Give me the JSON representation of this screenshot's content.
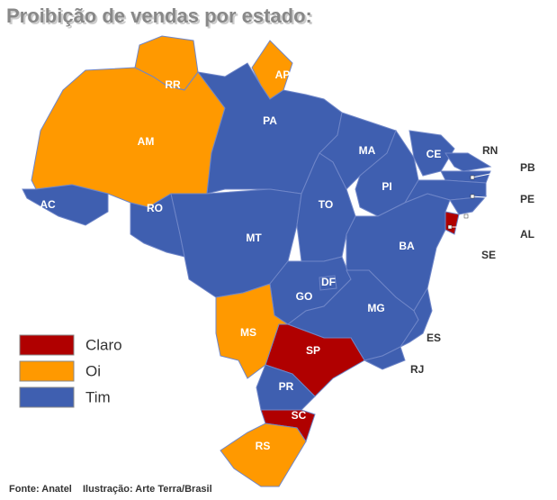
{
  "title": "Proibição de vendas por estado:",
  "legend": [
    {
      "label": "Claro",
      "color": "#b00000"
    },
    {
      "label": "Oi",
      "color": "#ff9900"
    },
    {
      "label": "Tim",
      "color": "#3f5fb0"
    }
  ],
  "states": [
    {
      "label": "RR",
      "operator": "Oi"
    },
    {
      "label": "AP",
      "operator": "Oi"
    },
    {
      "label": "AM",
      "operator": "Oi"
    },
    {
      "label": "AC",
      "operator": "Tim"
    },
    {
      "label": "RO",
      "operator": "Tim"
    },
    {
      "label": "PA",
      "operator": "Tim"
    },
    {
      "label": "MT",
      "operator": "Tim"
    },
    {
      "label": "MA",
      "operator": "Tim"
    },
    {
      "label": "PI",
      "operator": "Tim"
    },
    {
      "label": "CE",
      "operator": "Tim"
    },
    {
      "label": "RN",
      "operator": "Tim"
    },
    {
      "label": "PB",
      "operator": "Tim"
    },
    {
      "label": "PE",
      "operator": "Tim"
    },
    {
      "label": "AL",
      "operator": "Tim"
    },
    {
      "label": "SE",
      "operator": "Claro"
    },
    {
      "label": "BA",
      "operator": "Tim"
    },
    {
      "label": "TO",
      "operator": "Tim"
    },
    {
      "label": "GO",
      "operator": "Tim"
    },
    {
      "label": "DF",
      "operator": "Tim"
    },
    {
      "label": "MG",
      "operator": "Tim"
    },
    {
      "label": "ES",
      "operator": "Tim"
    },
    {
      "label": "RJ",
      "operator": "Tim"
    },
    {
      "label": "SP",
      "operator": "Claro"
    },
    {
      "label": "MS",
      "operator": "Oi"
    },
    {
      "label": "PR",
      "operator": "Tim"
    },
    {
      "label": "SC",
      "operator": "Claro"
    },
    {
      "label": "RS",
      "operator": "Oi"
    }
  ],
  "footer": {
    "source": "Fonte: Anatel",
    "credit": "Ilustração: Arte Terra/Brasil"
  }
}
